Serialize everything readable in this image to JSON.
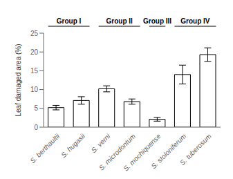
{
  "chart_data": {
    "type": "bar",
    "categories": [
      "S. berthaultii",
      "S. hugasii",
      "S. verni",
      "S. microdontum",
      "S. mochiquense",
      "S. stoloniferum",
      "S. tuberosum"
    ],
    "values": [
      5.2,
      7.1,
      10.2,
      6.8,
      2.1,
      14.0,
      19.3
    ],
    "errors": [
      0.6,
      1.0,
      0.8,
      0.7,
      0.5,
      2.5,
      1.8
    ],
    "color": "#ffffff",
    "ylabel": "Leaf damaged area (%)",
    "ylim": [
      0,
      25
    ],
    "yticks": [
      0,
      5,
      10,
      15,
      20,
      25
    ],
    "grid": false,
    "annotations": [
      {
        "text": "Group I",
        "categories": [
          "S. berthaultii",
          "S. hugasii"
        ]
      },
      {
        "text": "Group II",
        "categories": [
          "S. verni",
          "S. microdontum"
        ]
      },
      {
        "text": "Group III",
        "categories": [
          "S. mochiquense"
        ]
      },
      {
        "text": "Group IV",
        "categories": [
          "S. stoloniferum",
          "S. tuberosum"
        ]
      }
    ]
  }
}
